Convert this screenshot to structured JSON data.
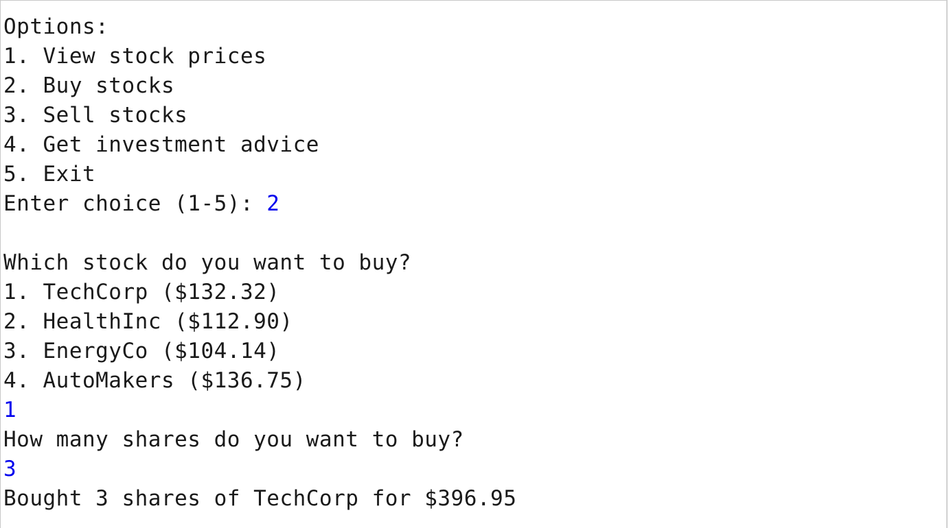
{
  "colors": {
    "output_text": "#1a1a1a",
    "user_input": "#0000ee",
    "background": "#ffffff"
  },
  "menu": {
    "header": "Options:",
    "items": [
      "1. View stock prices",
      "2. Buy stocks",
      "3. Sell stocks",
      "4. Get investment advice",
      "5. Exit"
    ],
    "prompt": "Enter choice (1-5): ",
    "choice_input": "2"
  },
  "buy": {
    "question": "Which stock do you want to buy?",
    "stocks": [
      "1. TechCorp ($132.32)",
      "2. HealthInc ($112.90)",
      "3. EnergyCo ($104.14)",
      "4. AutoMakers ($136.75)"
    ],
    "stock_input": "1",
    "shares_question": "How many shares do you want to buy?",
    "shares_input": "3",
    "result": "Bought 3 shares of TechCorp for $396.95"
  }
}
